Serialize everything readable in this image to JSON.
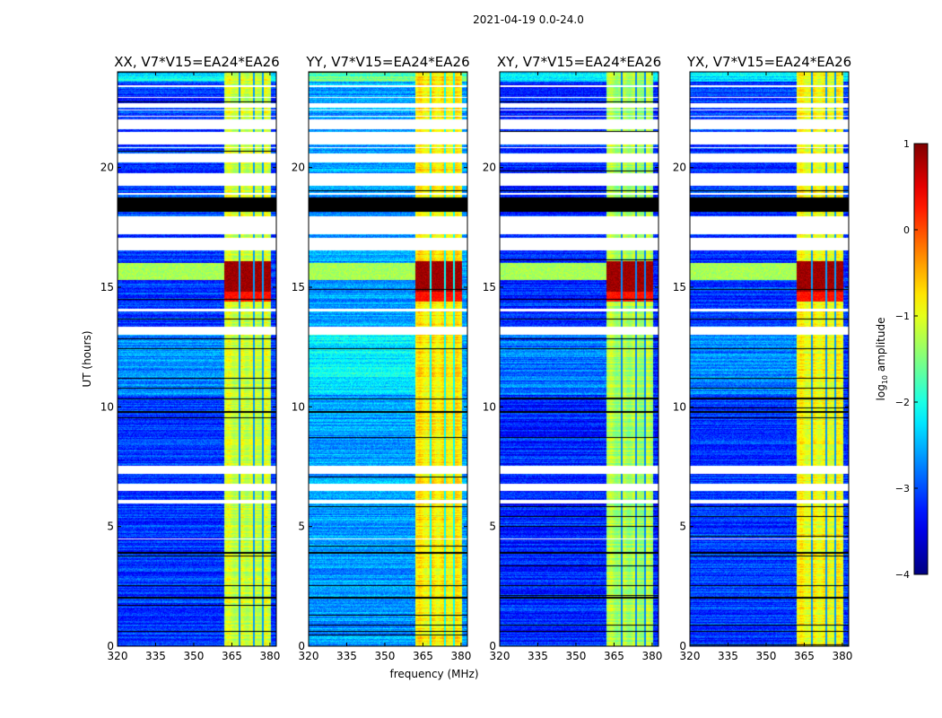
{
  "chart_data": {
    "type": "heatmap",
    "title": "2021-04-19 0.0-24.0",
    "xlabel": "frequency (MHz)",
    "ylabel": "UT (hours)",
    "xlim": [
      320,
      382.5
    ],
    "ylim": [
      0,
      24
    ],
    "xticks": [
      320,
      335,
      350,
      365,
      380
    ],
    "yticks": [
      0,
      5,
      10,
      15,
      20
    ],
    "colormap": "jet",
    "colorbar": {
      "label_prefix": "log",
      "label_sub": "10",
      "label_suffix": " amplitude",
      "range": [
        -4,
        1
      ],
      "ticks": [
        "1",
        "0",
        "−1",
        "−2",
        "−3",
        "−4"
      ],
      "tick_values": [
        1,
        0,
        -1,
        -2,
        -3,
        -4
      ]
    },
    "panels": [
      {
        "title": "XX, V7*V15=EA24*EA26",
        "base_level": -3.1,
        "band_level": -1.1,
        "seed": 1
      },
      {
        "title": "YY, V7*V15=EA24*EA26",
        "base_level": -2.6,
        "band_level": -0.8,
        "seed": 2
      },
      {
        "title": "XY, V7*V15=EA24*EA26",
        "base_level": -3.2,
        "band_level": -1.3,
        "seed": 3
      },
      {
        "title": "YX, V7*V15=EA24*EA26",
        "base_level": -3.1,
        "band_level": -0.9,
        "seed": 4
      }
    ],
    "rfi_band_mhz": [
      362,
      380.5
    ],
    "band_gaps_mhz": [
      368,
      373.8,
      377.3
    ],
    "burst_hours": [
      14.4,
      16.1
    ],
    "flagged_hours": [
      [
        23.35,
        23.45
      ],
      [
        22.5,
        22.65
      ],
      [
        21.6,
        22.0
      ],
      [
        20.95,
        21.5
      ],
      [
        20.2,
        20.55
      ],
      [
        19.25,
        19.75
      ],
      [
        18.85,
        18.95
      ],
      [
        17.2,
        17.95
      ],
      [
        16.55,
        17.05
      ],
      [
        13.0,
        13.35
      ],
      [
        14.0,
        14.1
      ],
      [
        7.2,
        7.55
      ],
      [
        6.5,
        6.8
      ],
      [
        5.95,
        6.1
      ],
      [
        4.45,
        4.5
      ]
    ],
    "black_hours": [
      [
        18.15,
        18.75
      ],
      [
        17.55,
        17.62
      ],
      [
        10.3,
        10.36
      ],
      [
        9.75,
        9.82
      ],
      [
        3.85,
        3.92
      ],
      [
        2.5,
        2.56
      ],
      [
        2.0,
        2.06
      ],
      [
        0.6,
        0.65
      ]
    ]
  }
}
